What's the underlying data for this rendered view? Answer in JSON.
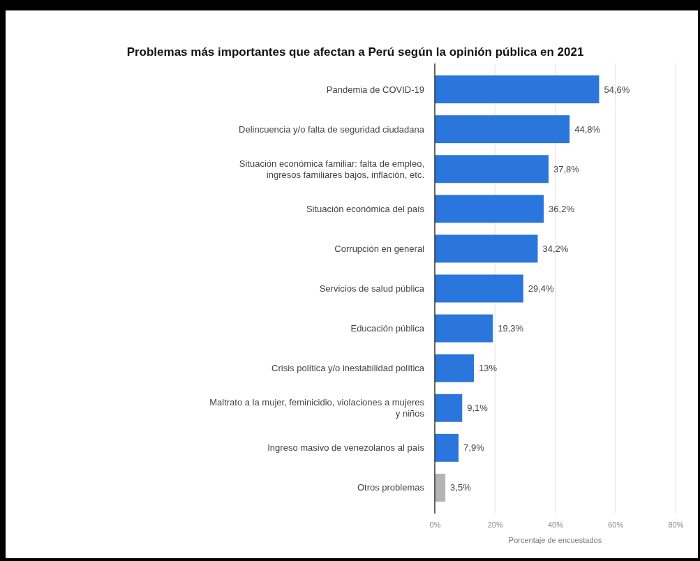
{
  "chart_data": {
    "type": "bar",
    "orientation": "horizontal",
    "title": "Problemas más importantes que afectan a Perú según la opinión pública en 2021",
    "categories": [
      "Pandemia de COVID-19",
      "Delincuencia y/o falta de seguridad ciudadana",
      "Situación económica familiar: falta de empleo, ingresos familiares bajos, inflación, etc.",
      "Situación económica del país",
      "Corrupción en general",
      "Servicios de salud pública",
      "Educación pública",
      "Crisis política y/o inestabilidad política",
      "Maltrato a la mujer, feminicidio, violaciones a mujeres y niños",
      "Ingreso masivo de venezolanos al país",
      "Otros problemas"
    ],
    "values": [
      54.6,
      44.8,
      37.8,
      36.2,
      34.2,
      29.4,
      19.3,
      13,
      9.1,
      7.9,
      3.5
    ],
    "colors": [
      "#2a76dd",
      "#2a76dd",
      "#2a76dd",
      "#2a76dd",
      "#2a76dd",
      "#2a76dd",
      "#2a76dd",
      "#2a76dd",
      "#2a76dd",
      "#2a76dd",
      "#b4b4b4"
    ],
    "value_labels": [
      "54,6%",
      "44,8%",
      "37,8%",
      "36,2%",
      "34,2%",
      "29,4%",
      "19,3%",
      "13%",
      "9,1%",
      "7,9%",
      "3,5%"
    ],
    "xlim": [
      0,
      80
    ],
    "xticks": [
      {
        "value": 0,
        "label": "0%"
      },
      {
        "value": 20,
        "label": "20%"
      },
      {
        "value": 40,
        "label": "40%"
      },
      {
        "value": 60,
        "label": "60%"
      },
      {
        "value": 80,
        "label": "80%"
      }
    ],
    "xlabel": "Porcentaje de encuestados",
    "grid": "x"
  }
}
